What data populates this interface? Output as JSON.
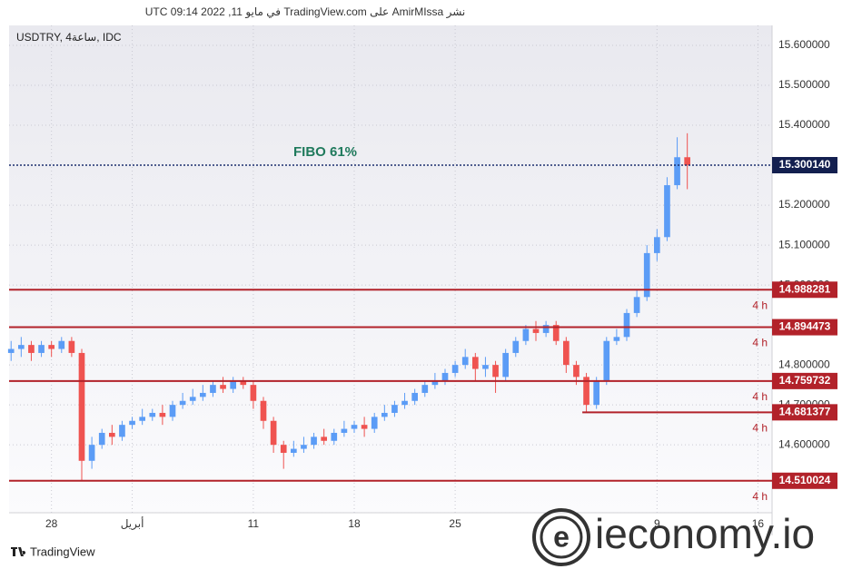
{
  "header": "نشر AmirMIssa على TradingView.com في مايو 11, 2022 09:14 UTC",
  "chart_data": {
    "type": "candlestick",
    "symbol": "USDTRY, 4ساعة, IDC",
    "xlim": [
      -2.1,
      35.7
    ],
    "ylim": [
      14.43,
      15.65
    ],
    "grid": true,
    "xticks": [
      {
        "value": 0,
        "label": "28"
      },
      {
        "value": 4,
        "label": "أبريل"
      },
      {
        "value": 10,
        "label": "11"
      },
      {
        "value": 15,
        "label": "18"
      },
      {
        "value": 20,
        "label": "25"
      },
      {
        "value": 30,
        "label": "9"
      },
      {
        "value": 35,
        "label": "16"
      }
    ],
    "yticks": [
      {
        "value": 15.6,
        "label": "15.600000"
      },
      {
        "value": 15.5,
        "label": "15.500000"
      },
      {
        "value": 15.4,
        "label": "15.400000"
      },
      {
        "value": 15.2,
        "label": "15.200000"
      },
      {
        "value": 15.1,
        "label": "15.100000"
      },
      {
        "value": 15.0,
        "label": "15.000000"
      },
      {
        "value": 14.8,
        "label": "14.800000"
      },
      {
        "value": 14.7,
        "label": "14.700000"
      },
      {
        "value": 14.6,
        "label": "14.600000"
      }
    ],
    "up_color": "#5b9cf6",
    "down_color": "#ef5350",
    "x": [
      -2,
      -1.5,
      -1,
      -0.5,
      0,
      0.5,
      1,
      1.5,
      2,
      2.5,
      3,
      3.5,
      4,
      4.5,
      5,
      5.5,
      6,
      6.5,
      7,
      7.5,
      8,
      8.5,
      9,
      9.5,
      10,
      10.5,
      11,
      11.5,
      12,
      12.5,
      13,
      13.5,
      14,
      14.5,
      15,
      15.5,
      16,
      16.5,
      17,
      17.5,
      18,
      18.5,
      19,
      19.5,
      20,
      20.5,
      21,
      21.5,
      22,
      22.5,
      23,
      23.5,
      24,
      24.5,
      25,
      25.5,
      26,
      26.5,
      27,
      27.5,
      28,
      28.5,
      29,
      29.5,
      30,
      30.5,
      31,
      31.5
    ],
    "open": [
      14.83,
      14.84,
      14.85,
      14.83,
      14.85,
      14.84,
      14.86,
      14.83,
      14.56,
      14.6,
      14.63,
      14.62,
      14.65,
      14.66,
      14.67,
      14.68,
      14.67,
      14.7,
      14.71,
      14.72,
      14.73,
      14.75,
      14.74,
      14.76,
      14.75,
      14.71,
      14.66,
      14.6,
      14.58,
      14.59,
      14.6,
      14.62,
      14.61,
      14.63,
      14.64,
      14.65,
      14.64,
      14.67,
      14.68,
      14.7,
      14.71,
      14.73,
      14.75,
      14.76,
      14.78,
      14.8,
      14.82,
      14.79,
      14.8,
      14.77,
      14.83,
      14.86,
      14.89,
      14.88,
      14.9,
      14.86,
      14.8,
      14.77,
      14.7,
      14.76,
      14.86,
      14.87,
      14.93,
      14.97,
      15.08,
      15.12,
      15.25,
      15.32
    ],
    "high": [
      14.86,
      14.87,
      14.86,
      14.86,
      14.86,
      14.87,
      14.87,
      14.84,
      14.62,
      14.64,
      14.65,
      14.66,
      14.67,
      14.69,
      14.69,
      14.7,
      14.71,
      14.73,
      14.74,
      14.75,
      14.76,
      14.77,
      14.77,
      14.77,
      14.76,
      14.72,
      14.67,
      14.61,
      14.61,
      14.62,
      14.63,
      14.64,
      14.64,
      14.66,
      14.66,
      14.67,
      14.68,
      14.7,
      14.71,
      14.73,
      14.74,
      14.76,
      14.78,
      14.79,
      14.81,
      14.84,
      14.83,
      14.82,
      14.81,
      14.84,
      14.87,
      14.9,
      14.91,
      14.91,
      14.91,
      14.87,
      14.81,
      14.78,
      14.77,
      14.87,
      14.89,
      14.94,
      14.99,
      15.1,
      15.14,
      15.27,
      15.37,
      15.38
    ],
    "low": [
      14.81,
      14.82,
      14.81,
      14.82,
      14.82,
      14.83,
      14.82,
      14.51,
      14.54,
      14.59,
      14.6,
      14.61,
      14.64,
      14.65,
      14.66,
      14.65,
      14.66,
      14.69,
      14.7,
      14.71,
      14.72,
      14.73,
      14.73,
      14.74,
      14.69,
      14.64,
      14.58,
      14.54,
      14.57,
      14.58,
      14.59,
      14.6,
      14.6,
      14.62,
      14.63,
      14.62,
      14.63,
      14.66,
      14.67,
      14.69,
      14.7,
      14.72,
      14.74,
      14.75,
      14.77,
      14.79,
      14.76,
      14.77,
      14.73,
      14.76,
      14.82,
      14.85,
      14.86,
      14.87,
      14.85,
      14.78,
      14.75,
      14.68,
      14.69,
      14.75,
      14.85,
      14.86,
      14.92,
      14.96,
      15.06,
      15.11,
      15.24,
      15.24
    ],
    "close": [
      14.84,
      14.85,
      14.83,
      14.85,
      14.84,
      14.86,
      14.83,
      14.56,
      14.6,
      14.63,
      14.62,
      14.65,
      14.66,
      14.67,
      14.68,
      14.67,
      14.7,
      14.71,
      14.72,
      14.73,
      14.75,
      14.74,
      14.76,
      14.75,
      14.71,
      14.66,
      14.6,
      14.58,
      14.59,
      14.6,
      14.62,
      14.61,
      14.63,
      14.64,
      14.65,
      14.64,
      14.67,
      14.68,
      14.7,
      14.71,
      14.73,
      14.75,
      14.76,
      14.78,
      14.8,
      14.82,
      14.79,
      14.8,
      14.77,
      14.83,
      14.86,
      14.89,
      14.88,
      14.9,
      14.86,
      14.8,
      14.77,
      14.7,
      14.76,
      14.86,
      14.87,
      14.93,
      14.97,
      15.08,
      15.12,
      15.25,
      15.32,
      15.3
    ],
    "levels": [
      {
        "value": 15.30014,
        "label": "15.300140",
        "name": "FIBO 61%",
        "color": "#1b2f6e",
        "label_color": "#131f4f",
        "text_color": "#1f7a5c"
      },
      {
        "value": 14.988281,
        "label": "14.988281",
        "timeframe": "4 h",
        "color": "#b2222a",
        "label_color": "#b2222a"
      },
      {
        "value": 14.894473,
        "label": "14.894473",
        "timeframe": "4 h",
        "color": "#b2222a",
        "label_color": "#b2222a"
      },
      {
        "value": 14.759732,
        "label": "14.759732",
        "timeframe": "4 h",
        "color": "#b2222a",
        "label_color": "#b2222a"
      },
      {
        "value": 14.681377,
        "label": "14.681377",
        "timeframe": "4 h",
        "color": "#b2222a",
        "label_color": "#b2222a",
        "x_start": 26.3
      },
      {
        "value": 14.510024,
        "label": "14.510024",
        "timeframe": "4 h",
        "color": "#b2222a",
        "label_color": "#b2222a"
      }
    ]
  },
  "footer": "TradingView",
  "watermark": "ieconomy.io"
}
